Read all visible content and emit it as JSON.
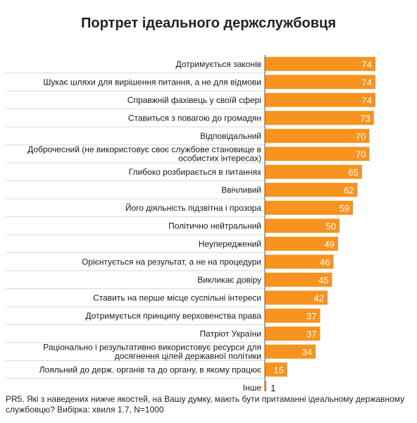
{
  "title": "Портрет ідеального держслужбовця",
  "footnote": "PR5. Які з наведених нижче якостей, на Вашу думку, мають бути притаманні ідеальному державному службовцю? Вибірка: хвиля 1.7, N=1000",
  "colors": {
    "bar": "#F7931E",
    "separator": "#d9d9d9",
    "axis": "#555555"
  },
  "chart_data": {
    "type": "bar",
    "orientation": "horizontal",
    "xlim": [
      0,
      74
    ],
    "categories": [
      [
        "Дотримується законів"
      ],
      [
        "Шукає шляхи для вирішення питання, а не для відмови"
      ],
      [
        "Справжній фахівець у своїй сфері"
      ],
      [
        "Ставиться з повагою до громадян"
      ],
      [
        "Відповідальний"
      ],
      [
        "Доброчесний (не використовує своє службове становище в",
        "особистих інтересах)"
      ],
      [
        "Глибоко розбирається в питаннях"
      ],
      [
        "Ввічливий"
      ],
      [
        "Його діяльність підзвітна і прозора"
      ],
      [
        "Політично нейтральний"
      ],
      [
        "Неупереджений"
      ],
      [
        "Орієнтується на результат, а не на процедури"
      ],
      [
        "Викликає довіру"
      ],
      [
        "Ставить на перше місце суспільні інтереси"
      ],
      [
        "Дотримується принципу верховенства права"
      ],
      [
        "Патріот України"
      ],
      [
        "Раціонально і результативно використовує ресурси для",
        "досягнення цілей державної політики"
      ],
      [
        "Лояльний до держ. органів та до органу, в якому працює"
      ],
      [
        "Інше"
      ]
    ],
    "values": [
      74,
      74,
      74,
      73,
      70,
      70,
      65,
      62,
      59,
      50,
      49,
      46,
      45,
      42,
      37,
      37,
      34,
      15,
      1
    ],
    "data_labels": [
      "74",
      "74",
      "74",
      "73",
      "70",
      "70",
      "65",
      "62",
      "59",
      "50",
      "49",
      "46",
      "45",
      "42",
      "37",
      "37",
      "34",
      "15",
      "1"
    ]
  }
}
